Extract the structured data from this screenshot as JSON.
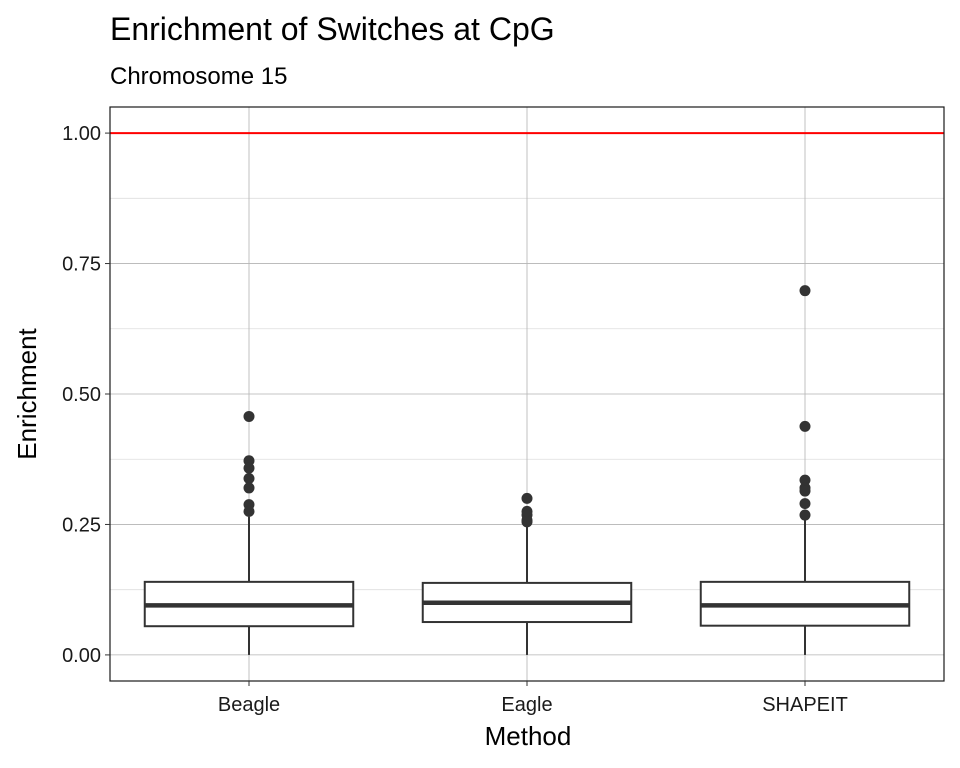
{
  "chart_data": {
    "type": "boxplot",
    "title": "Enrichment of Switches at CpG",
    "subtitle": "Chromosome 15",
    "xlabel": "Method",
    "ylabel": "Enrichment",
    "categories": [
      "Beagle",
      "Eagle",
      "SHAPEIT"
    ],
    "ylim": [
      -0.05,
      1.05
    ],
    "yticks": [
      0.0,
      0.25,
      0.5,
      0.75,
      1.0
    ],
    "ytick_labels": [
      "0.00",
      "0.25",
      "0.50",
      "0.75",
      "1.00"
    ],
    "reference_line": {
      "y": 1.0,
      "color": "#ff0000"
    },
    "grid": true,
    "boxes": [
      {
        "category": "Beagle",
        "min": 0.0,
        "q1": 0.055,
        "median": 0.095,
        "q3": 0.14,
        "max": 0.265,
        "outliers": [
          0.457,
          0.372,
          0.358,
          0.338,
          0.32,
          0.288,
          0.275
        ]
      },
      {
        "category": "Eagle",
        "min": 0.0,
        "q1": 0.063,
        "median": 0.1,
        "q3": 0.138,
        "max": 0.25,
        "outliers": [
          0.3,
          0.275,
          0.268,
          0.258,
          0.255
        ]
      },
      {
        "category": "SHAPEIT",
        "min": 0.0,
        "q1": 0.056,
        "median": 0.095,
        "q3": 0.14,
        "max": 0.262,
        "outliers": [
          0.698,
          0.438,
          0.335,
          0.32,
          0.314,
          0.29,
          0.268
        ]
      }
    ],
    "colors": {
      "box_stroke": "#333333",
      "box_fill": "#ffffff",
      "outlier": "#333333",
      "grid_major": "#b3b3b3",
      "grid_minor": "#dedede",
      "panel_border": "#1a1a1a"
    }
  }
}
